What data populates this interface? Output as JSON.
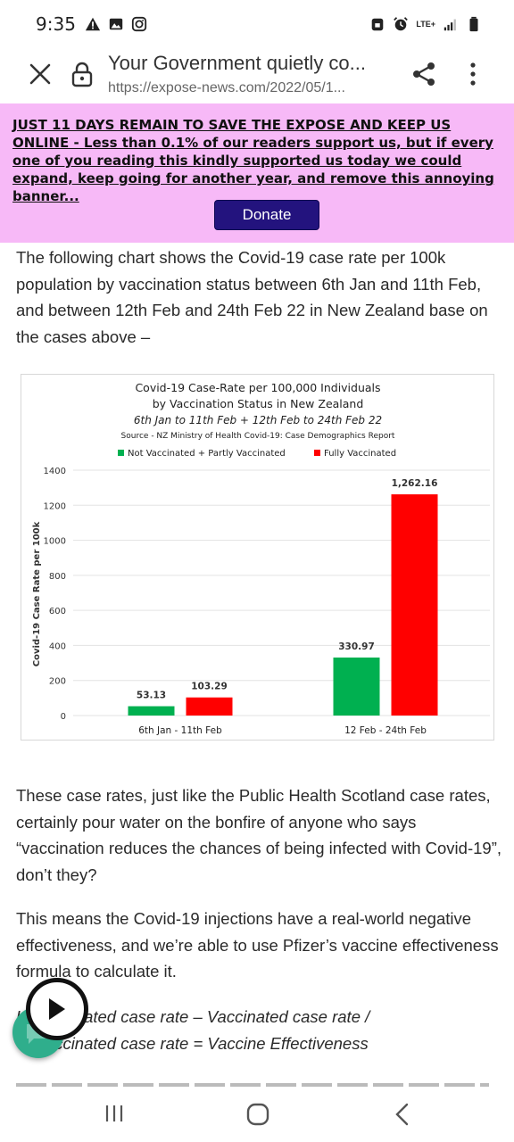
{
  "status_bar": {
    "time": "9:35",
    "left_icons": [
      "warning-icon",
      "image-icon",
      "instagram-icon"
    ],
    "right_icons": [
      "lock-notification-icon",
      "alarm-icon",
      "lte-signal-icon",
      "signal-icon",
      "battery-icon"
    ],
    "network": "LTE+"
  },
  "toolbar": {
    "title": "Your Government quietly co...",
    "url": "https://expose-news.com/2022/05/1..."
  },
  "banner": {
    "text": "JUST 11 DAYS REMAIN TO SAVE THE EXPOSE AND KEEP US ONLINE - Less than 0.1% of our readers support us, but if every one of you reading this kindly supported us today we could expand, keep going for another year, and remove this annoying banner...",
    "donate_label": "Donate",
    "bg_color": "#f7b9f7",
    "button_color": "#23137e"
  },
  "article": {
    "p1": "The following chart shows the Covid-19 case rate per 100k population by vaccination status between 6th Jan and 11th Feb, and between 12th Feb and 24th Feb 22 in New Zealand base on the cases above –",
    "p2": "These case rates, just like the Public Health Scotland case rates, certainly pour water on the bonfire of anyone who says “vaccination reduces the chances of being infected with Covid-19”, don’t they?",
    "p3": "This means the Covid-19 injections have a real-world negative effectiveness, and we’re able to use Pfizer’s vaccine effectiveness formula to calculate it.",
    "formula_line1": "Unvaccinated case rate – Vaccinated case rate /",
    "formula_line2": "Unvaccinated case rate = Vaccine Effectiveness"
  },
  "chart_data": {
    "type": "bar",
    "title_line1": "Covid-19 Case-Rate per 100,000 Individuals",
    "title_line2": "by Vaccination Status in New Zealand",
    "subtitle": "6th Jan to 11th Feb + 12th Feb to 24th Feb 22",
    "source": "Source - NZ Ministry of Health Covid-19: Case Demographics Report",
    "ylabel": "Covid-19 Case Rate per 100k",
    "xlabel": "",
    "ylim": [
      0,
      1400
    ],
    "yticks": [
      0,
      200,
      400,
      600,
      800,
      1000,
      1200,
      1400
    ],
    "grid": true,
    "legend_position": "top",
    "categories": [
      "6th Jan - 11th Feb",
      "12 Feb - 24th Feb"
    ],
    "series": [
      {
        "name": "Not Vaccinated + Partly Vaccinated",
        "color": "#00b050",
        "values": [
          53.13,
          330.97
        ],
        "labels": [
          "53.13",
          "330.97"
        ]
      },
      {
        "name": "Fully Vaccinated",
        "color": "#ff0000",
        "values": [
          103.29,
          1262.16
        ],
        "labels": [
          "103.29",
          "1,262.16"
        ]
      }
    ]
  },
  "floating": {
    "play_icon": "play-icon",
    "chat_icon": "chat-icon"
  },
  "navbar": {
    "icons": [
      "recents-icon",
      "home-icon",
      "back-icon"
    ]
  }
}
